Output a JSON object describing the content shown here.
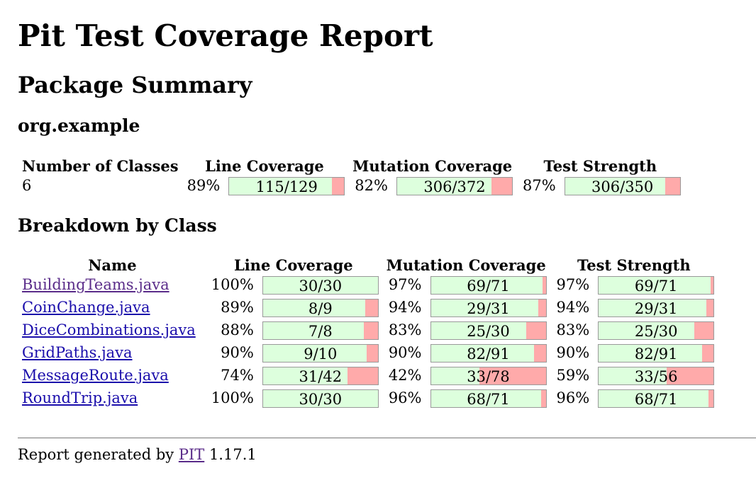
{
  "title": "Pit Test Coverage Report",
  "package_summary_heading": "Package Summary",
  "package_name": "org.example",
  "summary": {
    "headers": [
      "Number of Classes",
      "Line Coverage",
      "Mutation Coverage",
      "Test Strength"
    ],
    "num_classes": "6",
    "line": {
      "pct": "89%",
      "text": "115/129",
      "fraction": 0.891
    },
    "mutation": {
      "pct": "82%",
      "text": "306/372",
      "fraction": 0.823
    },
    "strength": {
      "pct": "87%",
      "text": "306/350",
      "fraction": 0.874
    }
  },
  "breakdown_heading": "Breakdown by Class",
  "class_headers": [
    "Name",
    "Line Coverage",
    "Mutation Coverage",
    "Test Strength"
  ],
  "classes": [
    {
      "name": "BuildingTeams.java",
      "visited": true,
      "line": {
        "pct": "100%",
        "text": "30/30",
        "fraction": 1.0
      },
      "mutation": {
        "pct": "97%",
        "text": "69/71",
        "fraction": 0.972
      },
      "strength": {
        "pct": "97%",
        "text": "69/71",
        "fraction": 0.972
      }
    },
    {
      "name": "CoinChange.java",
      "visited": false,
      "line": {
        "pct": "89%",
        "text": "8/9",
        "fraction": 0.889
      },
      "mutation": {
        "pct": "94%",
        "text": "29/31",
        "fraction": 0.935
      },
      "strength": {
        "pct": "94%",
        "text": "29/31",
        "fraction": 0.935
      }
    },
    {
      "name": "DiceCombinations.java",
      "visited": false,
      "line": {
        "pct": "88%",
        "text": "7/8",
        "fraction": 0.875
      },
      "mutation": {
        "pct": "83%",
        "text": "25/30",
        "fraction": 0.833
      },
      "strength": {
        "pct": "83%",
        "text": "25/30",
        "fraction": 0.833
      }
    },
    {
      "name": "GridPaths.java",
      "visited": false,
      "line": {
        "pct": "90%",
        "text": "9/10",
        "fraction": 0.9
      },
      "mutation": {
        "pct": "90%",
        "text": "82/91",
        "fraction": 0.901
      },
      "strength": {
        "pct": "90%",
        "text": "82/91",
        "fraction": 0.901
      }
    },
    {
      "name": "MessageRoute.java",
      "visited": false,
      "line": {
        "pct": "74%",
        "text": "31/42",
        "fraction": 0.738
      },
      "mutation": {
        "pct": "42%",
        "text": "33/78",
        "fraction": 0.423
      },
      "strength": {
        "pct": "59%",
        "text": "33/56",
        "fraction": 0.589
      }
    },
    {
      "name": "RoundTrip.java",
      "visited": false,
      "line": {
        "pct": "100%",
        "text": "30/30",
        "fraction": 1.0
      },
      "mutation": {
        "pct": "96%",
        "text": "68/71",
        "fraction": 0.958
      },
      "strength": {
        "pct": "96%",
        "text": "68/71",
        "fraction": 0.958
      }
    }
  ],
  "footer": {
    "prefix": "Report generated by ",
    "link": "PIT",
    "version": " 1.17.1"
  },
  "colors": {
    "covered": "#ddffdd",
    "uncovered": "#ffaaaa",
    "link": "#1a0dab",
    "visited_link": "#5b2d8a"
  }
}
